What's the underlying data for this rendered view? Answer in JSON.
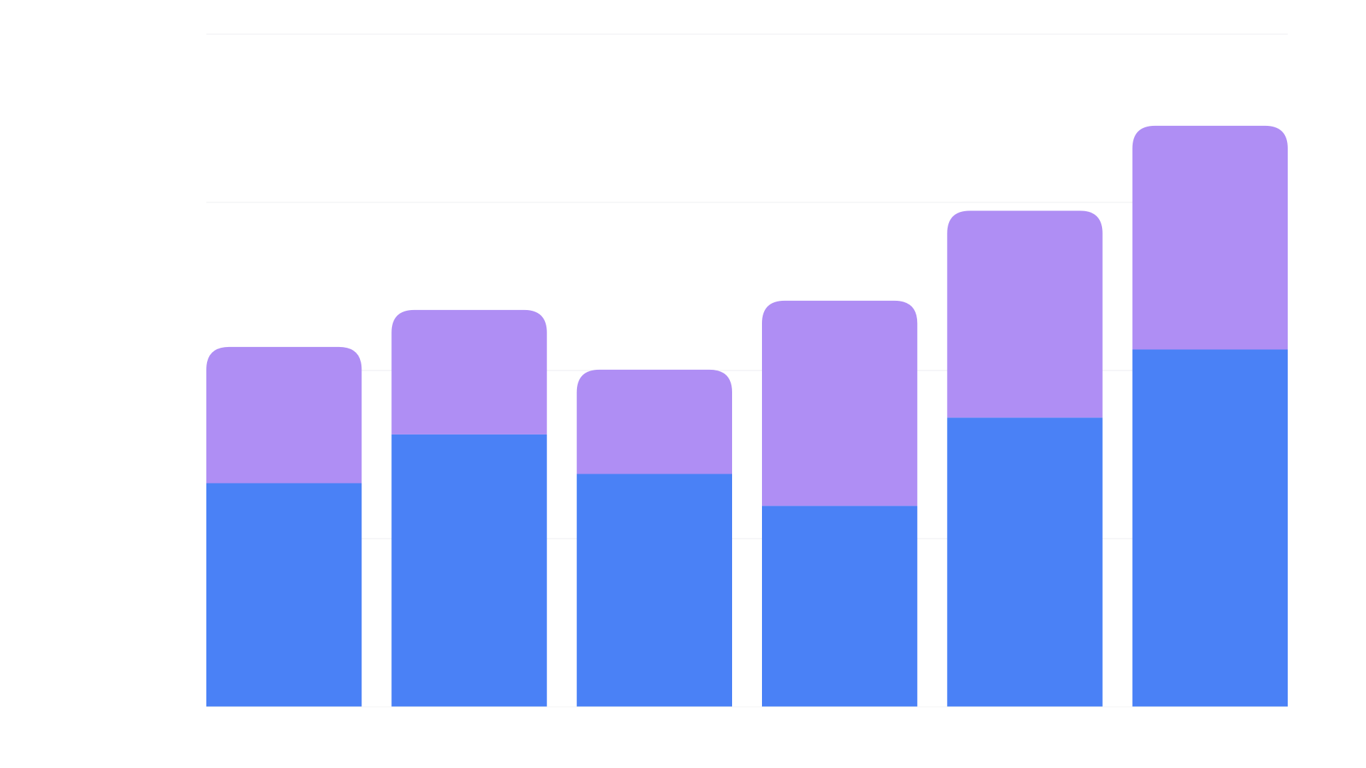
{
  "chart_data": {
    "type": "bar",
    "stacked": true,
    "categories": [
      "",
      "",
      "",
      "",
      "",
      ""
    ],
    "series": [
      {
        "values": [
          266,
          324,
          277,
          239,
          344,
          425
        ],
        "color": "#4a81f6"
      },
      {
        "values": [
          162,
          148,
          124,
          244,
          246,
          266
        ],
        "color": "#af8ef4"
      }
    ],
    "ylim": [
      0,
      800
    ],
    "yticks": [
      0,
      200,
      400,
      600,
      800
    ],
    "grid": true,
    "legend": "none",
    "title": "",
    "xlabel": "",
    "ylabel": ""
  },
  "colors": {
    "background": "#ffffff",
    "gridline": "#f3f4f6",
    "axis": "#f3f4f6"
  }
}
